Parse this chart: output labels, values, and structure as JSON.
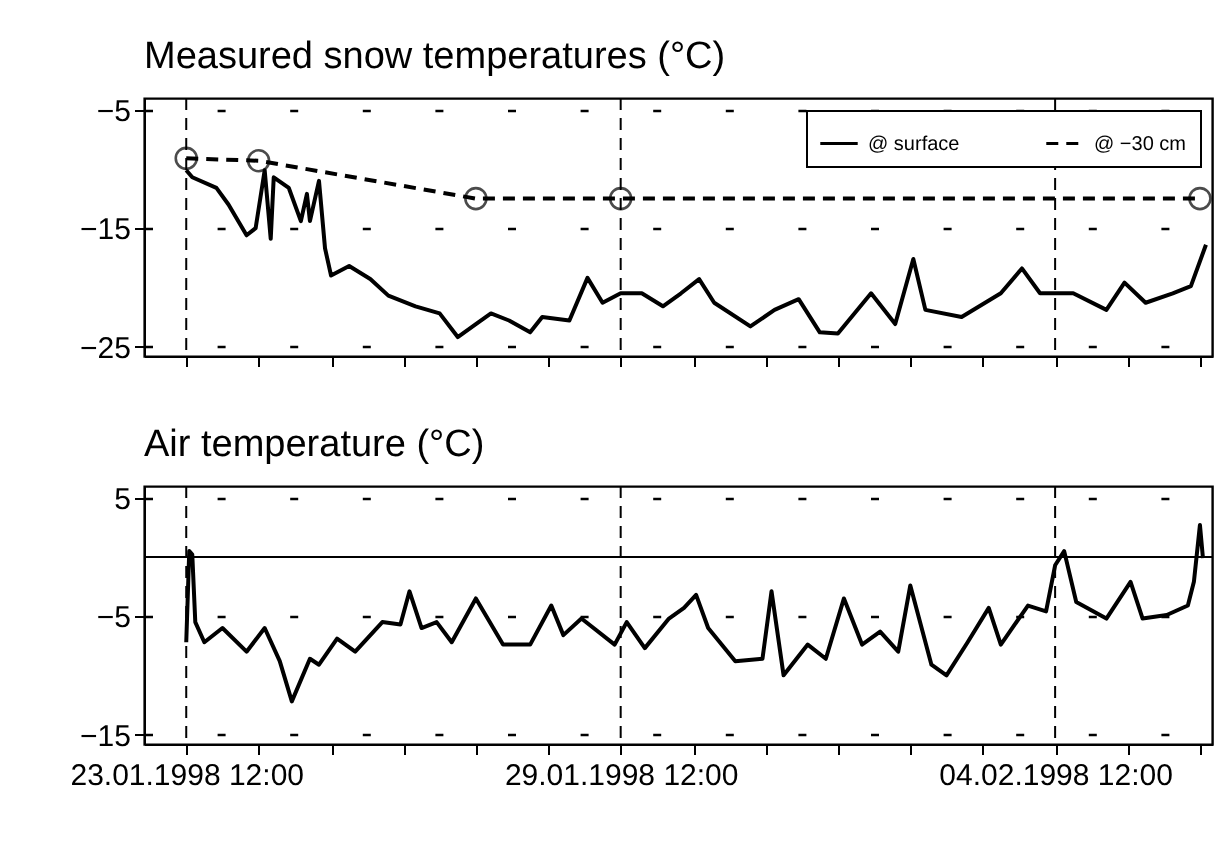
{
  "chart_data": [
    {
      "type": "line",
      "title": "Measured snow temperatures (°C)",
      "legend": "top right",
      "grid": "y",
      "tick_labels": "y",
      "xlim": [
        "1998-01-22T22:00",
        "1998-02-06T16:00"
      ],
      "xticks": [
        {
          "value": "1998-01-23T12:00",
          "label": null
        },
        {
          "value": "1998-01-24T12:00",
          "label": null
        },
        {
          "value": "1998-01-25T12:00",
          "label": null
        },
        {
          "value": "1998-01-26T12:00",
          "label": null
        },
        {
          "value": "1998-01-27T12:00",
          "label": null
        },
        {
          "value": "1998-01-28T12:00",
          "label": null
        },
        {
          "value": "1998-01-29T12:00",
          "label": null
        },
        {
          "value": "1998-01-30T12:00",
          "label": null
        },
        {
          "value": "1998-01-31T12:00",
          "label": null
        },
        {
          "value": "1998-02-01T12:00",
          "label": null
        },
        {
          "value": "1998-02-02T12:00",
          "label": null
        },
        {
          "value": "1998-02-03T12:00",
          "label": null
        },
        {
          "value": "1998-02-04T12:00",
          "label": null
        },
        {
          "value": "1998-02-05T12:00",
          "label": null
        },
        {
          "value": "1998-02-06T12:00",
          "label": null
        }
      ],
      "ylim": [
        -25.8,
        -4
      ],
      "yticks": [
        -25,
        -15,
        -5
      ],
      "ref_lines": [
        {
          "axis": "x",
          "value": "1998-01-23T12:00",
          "line_style": "dashed"
        },
        {
          "axis": "x",
          "value": "1998-01-29T12:00",
          "line_style": "dashed"
        },
        {
          "axis": "x",
          "value": "1998-02-04T12:00",
          "line_style": "dashed"
        }
      ],
      "series": [
        {
          "name": "@ surface",
          "color": "#000000",
          "line_style": "solid",
          "marker": "none",
          "x": [
            "1998-01-23T12:00",
            "1998-01-23T14:00",
            "1998-01-23T22:00",
            "1998-01-24T02:00",
            "1998-01-24T08:00",
            "1998-01-24T11:00",
            "1998-01-24T14:00",
            "1998-01-24T16:00",
            "1998-01-24T17:00",
            "1998-01-24T22:00",
            "1998-01-25T02:00",
            "1998-01-25T04:00",
            "1998-01-25T05:00",
            "1998-01-25T08:00",
            "1998-01-25T10:00",
            "1998-01-25T12:00",
            "1998-01-25T18:00",
            "1998-01-26T01:00",
            "1998-01-26T07:00",
            "1998-01-26T16:00",
            "1998-01-27T00:00",
            "1998-01-27T06:00",
            "1998-01-27T12:00",
            "1998-01-27T17:00",
            "1998-01-27T23:00",
            "1998-01-28T06:00",
            "1998-01-28T10:00",
            "1998-01-28T19:00",
            "1998-01-29T01:00",
            "1998-01-29T06:00",
            "1998-01-29T12:00",
            "1998-01-29T19:00",
            "1998-01-30T02:00",
            "1998-01-30T08:00",
            "1998-01-30T14:00",
            "1998-01-30T19:00",
            "1998-01-31T07:00",
            "1998-01-31T15:00",
            "1998-01-31T23:00",
            "1998-02-01T06:00",
            "1998-02-01T12:00",
            "1998-02-01T23:00",
            "1998-02-02T07:00",
            "1998-02-02T13:00",
            "1998-02-02T17:00",
            "1998-02-03T05:00",
            "1998-02-03T18:00",
            "1998-02-04T01:00",
            "1998-02-04T07:00",
            "1998-02-04T18:00",
            "1998-02-05T05:00",
            "1998-02-05T11:00",
            "1998-02-05T18:00",
            "1998-02-06T03:00",
            "1998-02-06T09:00",
            "1998-02-06T14:00"
          ],
          "values": [
            -10.1,
            -10.7,
            -11.6,
            -13.0,
            -15.6,
            -15.0,
            -10.1,
            -15.9,
            -10.7,
            -11.6,
            -14.4,
            -12.1,
            -14.4,
            -11.0,
            -16.7,
            -19.0,
            -18.2,
            -19.3,
            -20.7,
            -21.6,
            -22.2,
            -24.2,
            -23.1,
            -22.2,
            -22.8,
            -23.8,
            -22.5,
            -22.8,
            -19.2,
            -21.3,
            -20.5,
            -20.5,
            -21.6,
            -20.5,
            -19.3,
            -21.3,
            -23.3,
            -21.9,
            -21.0,
            -23.8,
            -23.9,
            -20.5,
            -23.1,
            -17.6,
            -21.9,
            -22.5,
            -20.5,
            -18.4,
            -20.5,
            -20.5,
            -21.9,
            -19.6,
            -21.3,
            -20.5,
            -19.9,
            -16.4
          ]
        },
        {
          "name": "@ −30 cm",
          "color": "#000000",
          "line_style": "dashed",
          "marker": "circle",
          "x": [
            "1998-01-23T12:00",
            "1998-01-24T12:00",
            "1998-01-27T12:00",
            "1998-01-29T12:00",
            "1998-02-06T12:00"
          ],
          "values": [
            -9.1,
            -9.3,
            -12.5,
            -12.5,
            -12.5
          ]
        }
      ]
    },
    {
      "type": "line",
      "title": "Air temperature (°C)",
      "grid": "y",
      "xlim": [
        "1998-01-22T22:00",
        "1998-02-06T16:00"
      ],
      "xticks": [
        {
          "value": "1998-01-23T12:00",
          "label": "23.01.1998 12:00"
        },
        {
          "value": "1998-01-24T12:00",
          "label": null
        },
        {
          "value": "1998-01-25T12:00",
          "label": null
        },
        {
          "value": "1998-01-26T12:00",
          "label": null
        },
        {
          "value": "1998-01-27T12:00",
          "label": null
        },
        {
          "value": "1998-01-28T12:00",
          "label": null
        },
        {
          "value": "1998-01-29T12:00",
          "label": "29.01.1998 12:00"
        },
        {
          "value": "1998-01-30T12:00",
          "label": null
        },
        {
          "value": "1998-01-31T12:00",
          "label": null
        },
        {
          "value": "1998-02-01T12:00",
          "label": null
        },
        {
          "value": "1998-02-02T12:00",
          "label": null
        },
        {
          "value": "1998-02-03T12:00",
          "label": null
        },
        {
          "value": "1998-02-04T12:00",
          "label": "04.02.1998 12:00"
        },
        {
          "value": "1998-02-05T12:00",
          "label": null
        },
        {
          "value": "1998-02-06T12:00",
          "label": null
        }
      ],
      "ylim": [
        -15.8,
        6
      ],
      "yticks": [
        -15,
        -5,
        5
      ],
      "ref_lines": [
        {
          "axis": "y",
          "value": 0,
          "line_style": "solid"
        },
        {
          "axis": "x",
          "value": "1998-01-23T12:00",
          "line_style": "dashed"
        },
        {
          "axis": "x",
          "value": "1998-01-29T12:00",
          "line_style": "dashed"
        },
        {
          "axis": "x",
          "value": "1998-02-04T12:00",
          "line_style": "dashed"
        }
      ],
      "series": [
        {
          "color": "#000000",
          "line_style": "solid",
          "marker": "none",
          "x": [
            "1998-01-23T12:00",
            "1998-01-23T13:00",
            "1998-01-23T14:00",
            "1998-01-23T15:00",
            "1998-01-23T18:00",
            "1998-01-24T00:00",
            "1998-01-24T08:00",
            "1998-01-24T14:00",
            "1998-01-24T19:00",
            "1998-01-24T23:00",
            "1998-01-25T05:00",
            "1998-01-25T08:00",
            "1998-01-25T14:00",
            "1998-01-25T20:00",
            "1998-01-26T05:00",
            "1998-01-26T11:00",
            "1998-01-26T14:00",
            "1998-01-26T18:00",
            "1998-01-26T23:00",
            "1998-01-27T04:00",
            "1998-01-27T12:00",
            "1998-01-27T21:00",
            "1998-01-28T06:00",
            "1998-01-28T13:00",
            "1998-01-28T17:00",
            "1998-01-28T23:00",
            "1998-01-29T10:00",
            "1998-01-29T14:00",
            "1998-01-29T20:00",
            "1998-01-30T04:00",
            "1998-01-30T09:00",
            "1998-01-30T13:00",
            "1998-01-30T17:00",
            "1998-01-31T02:00",
            "1998-01-31T11:00",
            "1998-01-31T14:00",
            "1998-01-31T18:00",
            "1998-02-01T02:00",
            "1998-02-01T08:00",
            "1998-02-01T14:00",
            "1998-02-01T20:00",
            "1998-02-02T02:00",
            "1998-02-02T08:00",
            "1998-02-02T12:00",
            "1998-02-02T19:00",
            "1998-02-03T00:00",
            "1998-02-03T07:00",
            "1998-02-03T14:00",
            "1998-02-03T18:00",
            "1998-02-04T03:00",
            "1998-02-04T09:00",
            "1998-02-04T12:00",
            "1998-02-04T15:00",
            "1998-02-04T19:00",
            "1998-02-05T05:00",
            "1998-02-05T13:00",
            "1998-02-05T17:00",
            "1998-02-06T01:00",
            "1998-02-06T08:00",
            "1998-02-06T10:00",
            "1998-02-06T12:00",
            "1998-02-06T13:00"
          ],
          "values": [
            -7.2,
            0.5,
            0.2,
            -5.5,
            -7.2,
            -6.0,
            -8.0,
            -6.0,
            -8.8,
            -12.2,
            -8.6,
            -9.1,
            -6.9,
            -8.0,
            -5.5,
            -5.7,
            -2.9,
            -6.0,
            -5.5,
            -7.2,
            -3.5,
            -7.4,
            -7.4,
            -4.1,
            -6.6,
            -5.2,
            -7.4,
            -5.5,
            -7.7,
            -5.2,
            -4.3,
            -3.2,
            -6.0,
            -8.8,
            -8.6,
            -2.9,
            -10.0,
            -7.4,
            -8.6,
            -3.5,
            -7.4,
            -6.3,
            -8.0,
            -2.4,
            -9.1,
            -10.0,
            -7.2,
            -4.3,
            -7.4,
            -4.1,
            -4.6,
            -0.7,
            0.5,
            -3.8,
            -5.2,
            -2.1,
            -5.2,
            -4.9,
            -4.1,
            -2.1,
            2.7,
            -0.1
          ]
        }
      ]
    }
  ]
}
